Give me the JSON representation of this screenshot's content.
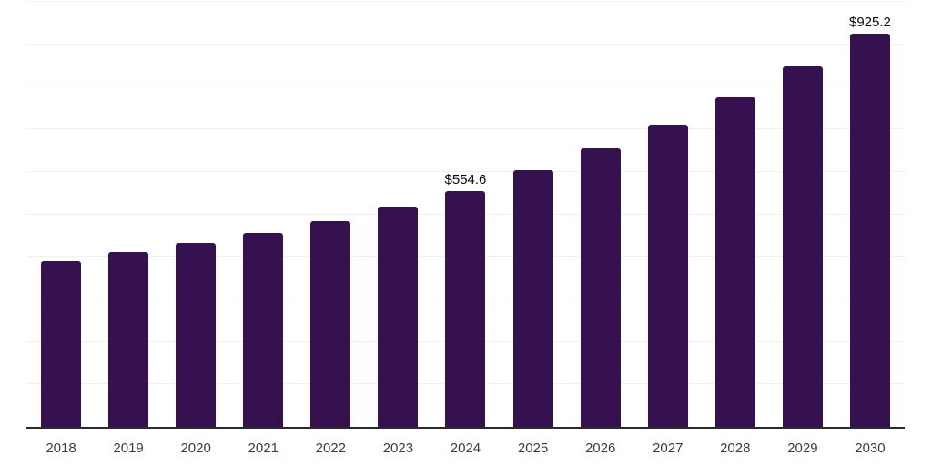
{
  "chart_data": {
    "type": "bar",
    "title": "",
    "xlabel": "",
    "ylabel": "",
    "categories": [
      "2018",
      "2019",
      "2020",
      "2021",
      "2022",
      "2023",
      "2024",
      "2025",
      "2026",
      "2027",
      "2028",
      "2029",
      "2030"
    ],
    "values": [
      390.2,
      411.7,
      433.5,
      456.6,
      485.0,
      517.5,
      554.6,
      602.9,
      654.6,
      711.5,
      774.4,
      847.0,
      925.2
    ],
    "data_labels": [
      "",
      "",
      "",
      "",
      "",
      "",
      "$554.6",
      "",
      "",
      "",
      "",
      "",
      "$925.2"
    ],
    "ylim": [
      0,
      1000
    ],
    "gridline_step": 100,
    "grid": true,
    "legend": false
  },
  "colors": {
    "bar": "#361150",
    "gridline": "#f0f0f0",
    "axis_line": "#2b2b2b",
    "tick_label": "#3d3d3d",
    "data_label": "#0a0a0a",
    "background": "#ffffff"
  }
}
